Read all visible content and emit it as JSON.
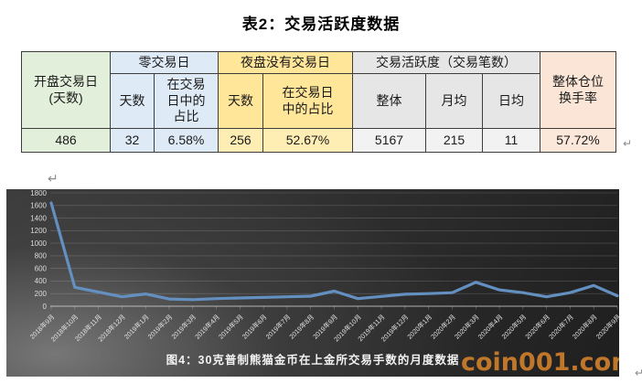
{
  "doc": {
    "title": "表2：交易活跃度数据",
    "paragraph_mark": "↵"
  },
  "table": {
    "open_days_header": "开盘交易日\n(天数)",
    "zero_group": "零交易日",
    "night_group": "夜盘没有交易日",
    "activity_group": "交易活跃度（交易笔数）",
    "turnover_header": "整体仓位\n换手率",
    "zero_days_label": "天数",
    "zero_ratio_label": "在交易\n日中的\n占比",
    "night_days_label": "天数",
    "night_ratio_label": "在交易日\n中的占比",
    "overall_label": "整体",
    "monthly_label": "月均",
    "daily_label": "日均",
    "values": {
      "open_days": "486",
      "zero_days": "32",
      "zero_ratio": "6.58%",
      "night_days": "256",
      "night_ratio": "52.67%",
      "overall": "5167",
      "monthly": "215",
      "daily": "11",
      "turnover": "57.72%"
    }
  },
  "chart_data": {
    "type": "line",
    "title": "图4：30克普制熊猫金币在上金所交易手数的月度数据",
    "x": [
      "2018年9月",
      "2018年10月",
      "2018年11月",
      "2018年12月",
      "2019年1月",
      "2019年2月",
      "2019年3月",
      "2019年4月",
      "2019年5月",
      "2019年6月",
      "2019年7月",
      "2019年8月",
      "2019年9月",
      "2019年10月",
      "2019年11月",
      "2019年12月",
      "2020年1月",
      "2020年2月",
      "2020年3月",
      "2020年4月",
      "2020年5月",
      "2020年6月",
      "2020年7月",
      "2020年8月",
      "2020年9月"
    ],
    "values": [
      1640,
      300,
      225,
      150,
      195,
      115,
      105,
      120,
      130,
      140,
      150,
      160,
      240,
      120,
      155,
      190,
      200,
      215,
      380,
      260,
      215,
      150,
      215,
      330,
      165
    ],
    "ylim": [
      0,
      1800
    ],
    "ytick_step": 200,
    "grid": true,
    "legend": false,
    "line_color": "#6390c0",
    "background": "dark-gradient"
  },
  "watermark": {
    "text": "coin001.com",
    "color": "#c97c2b"
  }
}
